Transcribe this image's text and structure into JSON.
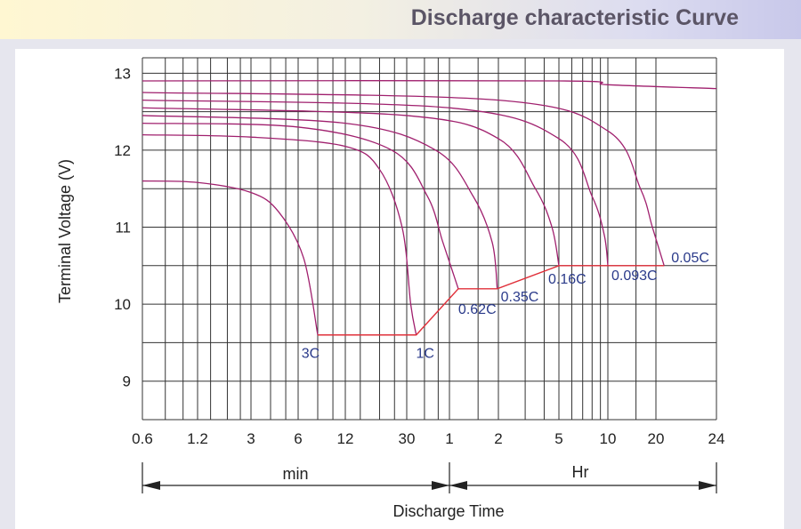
{
  "banner": {
    "title": "Discharge characteristic Curve"
  },
  "chart_data": {
    "type": "line",
    "title": "",
    "ylabel": "Terminal Voltage  (V)",
    "xlabel": "Discharge Time",
    "ylim": [
      8.5,
      13.2
    ],
    "y_ticks": [
      9,
      10,
      11,
      12,
      13
    ],
    "x_tick_labels": [
      "0.6",
      "1.2",
      "3",
      "6",
      "12",
      "30",
      "1",
      "2",
      "5",
      "10",
      "20",
      "24"
    ],
    "x_region_min": "min",
    "x_region_hr": "Hr",
    "grid": true,
    "series": [
      {
        "name": "3C",
        "points": [
          [
            0.6,
            11.6
          ],
          [
            1.2,
            11.58
          ],
          [
            3,
            11.45
          ],
          [
            4.5,
            11.2
          ],
          [
            6.5,
            10.6
          ],
          [
            8,
            9.6
          ]
        ]
      },
      {
        "name": "1C",
        "points": [
          [
            0.6,
            12.2
          ],
          [
            3,
            12.17
          ],
          [
            12,
            12.05
          ],
          [
            20,
            11.75
          ],
          [
            28,
            11.0
          ],
          [
            32,
            10.0
          ],
          [
            35,
            9.6
          ]
        ]
      },
      {
        "name": "0.62C",
        "points": [
          [
            0.6,
            12.35
          ],
          [
            6,
            12.3
          ],
          [
            24,
            12.0
          ],
          [
            42,
            11.4
          ],
          [
            54,
            10.8
          ],
          [
            68,
            10.2
          ]
        ]
      },
      {
        "name": "0.35C",
        "points": [
          [
            0.6,
            12.45
          ],
          [
            12,
            12.35
          ],
          [
            48,
            12.0
          ],
          [
            84,
            11.4
          ],
          [
            110,
            10.8
          ],
          [
            118,
            10.2
          ]
        ]
      },
      {
        "name": "0.16C",
        "points": [
          [
            0.6,
            12.55
          ],
          [
            30,
            12.45
          ],
          [
            120,
            12.15
          ],
          [
            210,
            11.5
          ],
          [
            270,
            11.0
          ],
          [
            300,
            10.5
          ]
        ]
      },
      {
        "name": "0.093C",
        "points": [
          [
            0.6,
            12.65
          ],
          [
            60,
            12.55
          ],
          [
            300,
            12.15
          ],
          [
            480,
            11.4
          ],
          [
            570,
            10.9
          ],
          [
            600,
            10.5
          ]
        ]
      },
      {
        "name": "0.05C",
        "points": [
          [
            0.6,
            12.75
          ],
          [
            120,
            12.65
          ],
          [
            600,
            12.25
          ],
          [
            960,
            11.5
          ],
          [
            1140,
            11.0
          ],
          [
            1230,
            10.5
          ]
        ]
      }
    ],
    "cutoff_line": [
      [
        8,
        9.6
      ],
      [
        35,
        9.6
      ],
      [
        68,
        10.2
      ],
      [
        118,
        10.2
      ],
      [
        300,
        10.5
      ],
      [
        600,
        10.5
      ],
      [
        1230,
        10.5
      ]
    ],
    "top_series": {
      "name": "",
      "points": [
        [
          0.6,
          12.9
        ],
        [
          300,
          12.9
        ],
        [
          600,
          12.85
        ],
        [
          1440,
          12.8
        ]
      ]
    },
    "colors": {
      "curve": "#a0206e",
      "cutoff": "#e0303a",
      "label": "#2a3a8a",
      "grid": "#333333",
      "axis_text": "#222222"
    }
  }
}
